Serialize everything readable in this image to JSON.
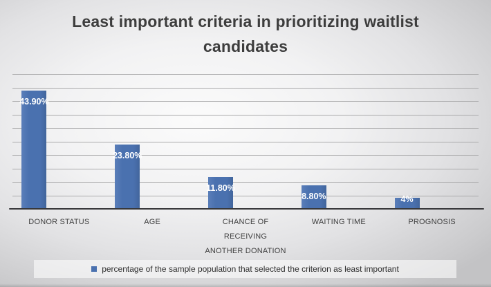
{
  "chart_data": {
    "type": "bar",
    "title": "Least important criteria in prioritizing waitlist candidates",
    "categories": [
      "DONOR STATUS",
      "AGE",
      "CHANCE OF RECEIVING ANOTHER DONATION",
      "WAITING TIME",
      "PROGNOSIS"
    ],
    "values": [
      43.9,
      23.8,
      11.8,
      8.8,
      4
    ],
    "value_labels": [
      "43.90%",
      "23.80%",
      "11.80%",
      "8.80%",
      "4%"
    ],
    "xlabel": "",
    "ylabel": "",
    "ylim": [
      0,
      50
    ],
    "gridline_step": 5,
    "grid": true,
    "y_axis_labels_visible": false,
    "legend_position": "bottom",
    "legend_label": "percentage of the sample population that selected the criterion as least important",
    "colors": {
      "bar": "#4a71af",
      "bar_value_label": "#ffffff",
      "gridline": "#a9a9aa",
      "axis_line": "#37373a",
      "title_text": "#3d3d3d",
      "category_text": "#3f3f3f",
      "legend_text": "#2e2e2e"
    }
  }
}
